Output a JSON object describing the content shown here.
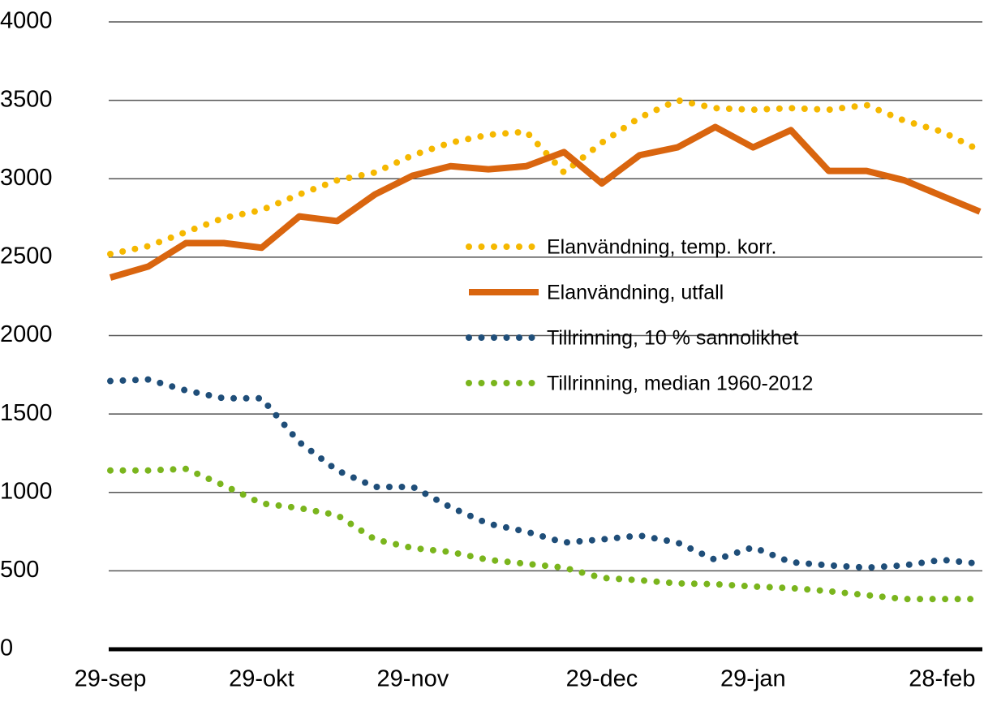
{
  "chart_data": {
    "type": "line",
    "categories": [
      "29-sep",
      null,
      null,
      null,
      "29-okt",
      null,
      null,
      null,
      "29-nov",
      null,
      null,
      null,
      null,
      "29-dec",
      null,
      null,
      null,
      "29-jan",
      null,
      null,
      null,
      null,
      "28-feb",
      null
    ],
    "ylim": [
      0,
      4000
    ],
    "yticks": [
      0,
      500,
      1000,
      1500,
      2000,
      2500,
      3000,
      3500,
      4000
    ],
    "grid": true,
    "series": [
      {
        "name": "Elanvändning, temp. korr.",
        "color": "#f5b800",
        "style": "dotted",
        "values": [
          2520,
          2570,
          2660,
          2750,
          2800,
          2900,
          2990,
          3040,
          3150,
          3230,
          3280,
          3300,
          3040,
          3230,
          3390,
          3500,
          3450,
          3440,
          3450,
          3440,
          3470,
          3370,
          3300,
          3180
        ]
      },
      {
        "name": "Elanvändning, utfall",
        "color": "#d9650f",
        "style": "solid",
        "values": [
          2370,
          2440,
          2590,
          2590,
          2560,
          2760,
          2730,
          2900,
          3020,
          3080,
          3060,
          3080,
          3170,
          2970,
          3150,
          3200,
          3330,
          3200,
          3310,
          3050,
          3050,
          2990,
          2890,
          2790
        ]
      },
      {
        "name": "Tillrinning, 10 % sannolikhet",
        "color": "#1f4e79",
        "style": "dotted",
        "values": [
          1710,
          1720,
          1650,
          1600,
          1600,
          1320,
          1140,
          1035,
          1035,
          905,
          800,
          750,
          680,
          700,
          725,
          680,
          570,
          650,
          555,
          535,
          520,
          535,
          570,
          545
        ]
      },
      {
        "name": "Tillrinning, median 1960-2012",
        "color": "#7ab51d",
        "style": "dotted",
        "values": [
          1140,
          1140,
          1150,
          1045,
          930,
          900,
          855,
          700,
          645,
          620,
          570,
          545,
          520,
          455,
          440,
          420,
          415,
          400,
          390,
          370,
          345,
          320,
          320,
          320
        ]
      }
    ]
  }
}
